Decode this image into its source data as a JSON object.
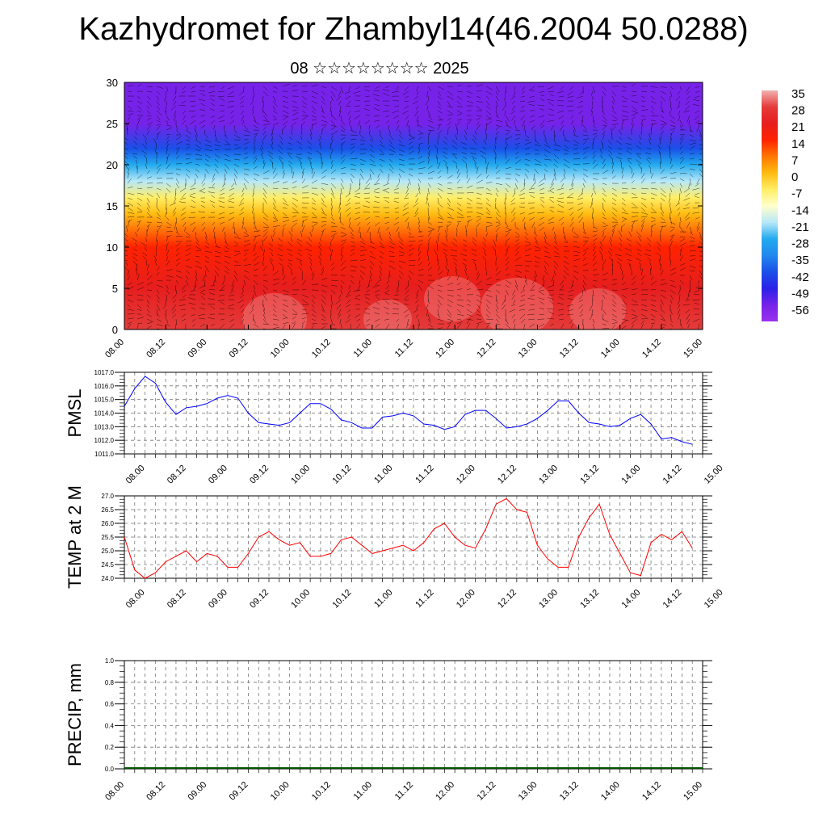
{
  "header": {
    "title": "Kazhydromet for Zhambyl14(46.2004 50.0288)",
    "subtitle": "08 ☆☆☆☆☆☆☆☆ 2025"
  },
  "time_labels": [
    "08.00",
    "08.12",
    "09.00",
    "09.12",
    "10.00",
    "10.12",
    "11.00",
    "11.12",
    "12.00",
    "12.12",
    "13.00",
    "13.12",
    "14.00",
    "14.12",
    "15.00"
  ],
  "chart_data": [
    {
      "type": "heatmap",
      "xlim": [
        0,
        168
      ],
      "ylim": [
        0,
        30
      ],
      "y_ticks": [
        0,
        5,
        10,
        15,
        20,
        25,
        30
      ],
      "colorbar": {
        "labels": [
          "35",
          "28",
          "21",
          "14",
          "7",
          "0",
          "-7",
          "-14",
          "-21",
          "-28",
          "-35",
          "-42",
          "-49",
          "-56"
        ],
        "colors": [
          "#f3b0b0",
          "#e53b3b",
          "#e61e1e",
          "#ff2200",
          "#ff7700",
          "#ffbb11",
          "#ffee66",
          "#ffffcc",
          "#b8e8f8",
          "#22aaee",
          "#2288ee",
          "#1a4fe8",
          "#2a22e8",
          "#7722e8",
          "#9933ee"
        ]
      },
      "profile": [
        {
          "h": 0,
          "t": 28
        },
        {
          "h": 5,
          "t": 23
        },
        {
          "h": 10,
          "t": 14
        },
        {
          "h": 14,
          "t": 0
        },
        {
          "h": 16,
          "t": -10
        },
        {
          "h": 18,
          "t": -20
        },
        {
          "h": 20,
          "t": -30
        },
        {
          "h": 22,
          "t": -42
        },
        {
          "h": 25,
          "t": -55
        },
        {
          "h": 27,
          "t": -57
        },
        {
          "h": 30,
          "t": -60
        }
      ]
    },
    {
      "type": "line",
      "ylabel": "PMSL",
      "ylim": [
        1011.0,
        1017.0
      ],
      "y_ticks": [
        "1011.0",
        "1012.0",
        "1013.0",
        "1014.0",
        "1015.0",
        "1016.0",
        "1017.0"
      ],
      "color": "#0000ff",
      "x": [
        0,
        3,
        6,
        9,
        12,
        15,
        18,
        21,
        24,
        27,
        30,
        33,
        36,
        39,
        42,
        45,
        48,
        51,
        54,
        57,
        60,
        63,
        66,
        69,
        72,
        75,
        78,
        81,
        84,
        87,
        90,
        93,
        96,
        99,
        102,
        105,
        108,
        111,
        114,
        117,
        120,
        123,
        126,
        129,
        132,
        135,
        138,
        141,
        144,
        147,
        150,
        153,
        156,
        159,
        162,
        165
      ],
      "values": [
        1014.5,
        1015.8,
        1016.7,
        1016.2,
        1014.8,
        1013.9,
        1014.4,
        1014.5,
        1014.7,
        1015.1,
        1015.3,
        1015.1,
        1014.0,
        1013.3,
        1013.2,
        1013.1,
        1013.3,
        1014.0,
        1014.7,
        1014.7,
        1014.3,
        1013.5,
        1013.3,
        1012.9,
        1012.9,
        1013.7,
        1013.8,
        1014.0,
        1013.8,
        1013.2,
        1013.1,
        1012.8,
        1013.0,
        1013.9,
        1014.2,
        1014.2,
        1013.6,
        1012.9,
        1013.0,
        1013.2,
        1013.6,
        1014.2,
        1014.9,
        1014.9,
        1014.0,
        1013.3,
        1013.2,
        1013.0,
        1013.1,
        1013.6,
        1013.9,
        1013.2,
        1012.1,
        1012.2,
        1011.9,
        1011.7
      ]
    },
    {
      "type": "line",
      "ylabel": "TEMP at 2 M",
      "ylim": [
        24.0,
        27.0
      ],
      "y_ticks": [
        "24.0",
        "24.5",
        "25.0",
        "25.5",
        "26.0",
        "26.5",
        "27.0"
      ],
      "color": "#ff0000",
      "x": [
        0,
        3,
        6,
        9,
        12,
        15,
        18,
        21,
        24,
        27,
        30,
        33,
        36,
        39,
        42,
        45,
        48,
        51,
        54,
        57,
        60,
        63,
        66,
        69,
        72,
        75,
        78,
        81,
        84,
        87,
        90,
        93,
        96,
        99,
        102,
        105,
        108,
        111,
        114,
        117,
        120,
        123,
        126,
        129,
        132,
        135,
        138,
        141,
        144,
        147,
        150,
        153,
        156,
        159,
        162,
        165
      ],
      "values": [
        25.5,
        24.3,
        24.0,
        24.2,
        24.6,
        24.8,
        25.0,
        24.6,
        24.9,
        24.8,
        24.4,
        24.4,
        24.9,
        25.5,
        25.7,
        25.4,
        25.2,
        25.3,
        24.8,
        24.8,
        24.9,
        25.4,
        25.5,
        25.2,
        24.9,
        25.0,
        25.1,
        25.2,
        25.0,
        25.3,
        25.8,
        26.0,
        25.5,
        25.2,
        25.1,
        25.8,
        26.7,
        26.9,
        26.5,
        26.4,
        25.2,
        24.7,
        24.4,
        24.4,
        25.5,
        26.2,
        26.7,
        25.6,
        24.9,
        24.2,
        24.1,
        25.3,
        25.6,
        25.4,
        25.7,
        25.1
      ]
    },
    {
      "type": "bar",
      "ylabel": "PRECIP, mm",
      "ylim": [
        0.0,
        1.0
      ],
      "y_ticks": [
        "0.0",
        "0.2",
        "0.4",
        "0.6",
        "0.8",
        "1.0"
      ],
      "values": []
    }
  ]
}
